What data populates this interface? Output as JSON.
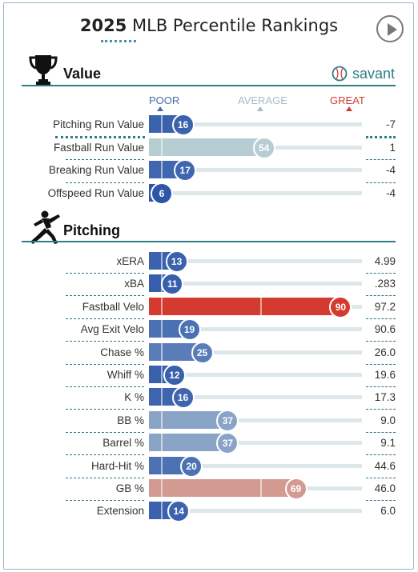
{
  "header": {
    "year": "2025",
    "title": "MLB Percentile Rankings"
  },
  "brand": {
    "name": "savant"
  },
  "legend": {
    "poor": "POOR",
    "average": "AVERAGE",
    "great": "GREAT",
    "poor_color": "#4a6aa8",
    "average_color": "#a7bcc4",
    "great_color": "#d23c33"
  },
  "sections": {
    "value": {
      "title": "Value"
    },
    "pitching": {
      "title": "Pitching"
    }
  },
  "value_rows": [
    {
      "label": "Pitching Run Value",
      "percentile": 16,
      "value": "-7",
      "color": "#3b63ad"
    },
    {
      "label": "Fastball Run Value",
      "percentile": 54,
      "value": "1",
      "color": "#b7cdd4"
    },
    {
      "label": "Breaking Run Value",
      "percentile": 17,
      "value": "-4",
      "color": "#3f66ae"
    },
    {
      "label": "Offspeed Run Value",
      "percentile": 6,
      "value": "-4",
      "color": "#2f56a6"
    }
  ],
  "pitching_rows": [
    {
      "label": "xERA",
      "percentile": 13,
      "value": "4.99",
      "color": "#3a62ad"
    },
    {
      "label": "xBA",
      "percentile": 11,
      "value": ".283",
      "color": "#375fab"
    },
    {
      "label": "Fastball Velo",
      "percentile": 90,
      "value": "97.2",
      "color": "#d53a30"
    },
    {
      "label": "Avg Exit Velo",
      "percentile": 19,
      "value": "90.6",
      "color": "#4a71b4"
    },
    {
      "label": "Chase %",
      "percentile": 25,
      "value": "26.0",
      "color": "#5a7db9"
    },
    {
      "label": "Whiff %",
      "percentile": 12,
      "value": "19.6",
      "color": "#3860ab"
    },
    {
      "label": "K %",
      "percentile": 16,
      "value": "17.3",
      "color": "#3e65ae"
    },
    {
      "label": "BB %",
      "percentile": 37,
      "value": "9.0",
      "color": "#8aa4c8"
    },
    {
      "label": "Barrel %",
      "percentile": 37,
      "value": "9.1",
      "color": "#8aa4c8"
    },
    {
      "label": "Hard-Hit %",
      "percentile": 20,
      "value": "44.6",
      "color": "#4c72b4"
    },
    {
      "label": "GB %",
      "percentile": 69,
      "value": "46.0",
      "color": "#d39a92"
    },
    {
      "label": "Extension",
      "percentile": 14,
      "value": "6.0",
      "color": "#3b63ad"
    }
  ]
}
